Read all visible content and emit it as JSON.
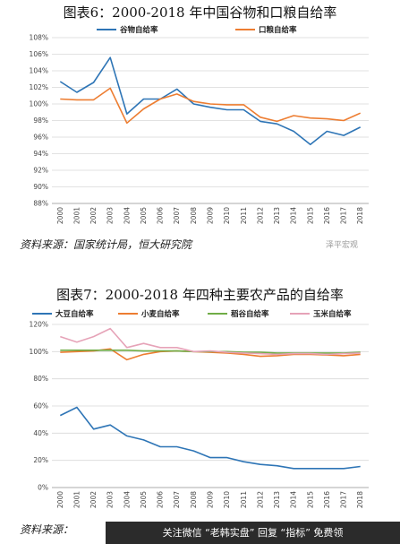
{
  "chart1": {
    "title": "图表6：2000-2018 年中国谷物和口粮自给率",
    "source": "资料来源：国家统计局，恒大研究院",
    "watermark": "泽平宏观",
    "chart_data": {
      "type": "line",
      "title": "图表6：2000-2018 年中国谷物和口粮自给率",
      "x": [
        "2000",
        "2001",
        "2002",
        "2003",
        "2004",
        "2005",
        "2006",
        "2007",
        "2008",
        "2009",
        "2010",
        "2011",
        "2012",
        "2013",
        "2014",
        "2015",
        "2016",
        "2017",
        "2018"
      ],
      "y_ticks": [
        "88%",
        "90%",
        "92%",
        "94%",
        "96%",
        "98%",
        "100%",
        "102%",
        "104%",
        "106%",
        "108%"
      ],
      "ylim": [
        88,
        108
      ],
      "grid": true,
      "legend_position": "top",
      "series": [
        {
          "name": "谷物自给率",
          "color": "#2e75b6",
          "values": [
            102.7,
            101.4,
            102.6,
            105.6,
            98.8,
            100.6,
            100.6,
            101.8,
            100.0,
            99.6,
            99.3,
            99.3,
            97.9,
            97.6,
            96.7,
            95.1,
            96.7,
            96.2,
            97.2
          ]
        },
        {
          "name": "口粮自给率",
          "color": "#ed7d31",
          "values": [
            100.6,
            100.5,
            100.5,
            101.9,
            97.7,
            99.4,
            100.6,
            101.2,
            100.3,
            100.0,
            99.9,
            99.9,
            98.4,
            97.9,
            98.6,
            98.3,
            98.2,
            98.0,
            98.9
          ]
        }
      ]
    }
  },
  "chart2": {
    "title": "图表7：2000-2018 年四种主要农产品的自给率",
    "source": "资料来源：",
    "chart_data": {
      "type": "line",
      "title": "图表7：2000-2018 年四种主要农产品的自给率",
      "x": [
        "2000",
        "2001",
        "2002",
        "2003",
        "2004",
        "2005",
        "2006",
        "2007",
        "2008",
        "2009",
        "2010",
        "2011",
        "2012",
        "2013",
        "2014",
        "2015",
        "2016",
        "2017",
        "2018"
      ],
      "y_ticks": [
        "0%",
        "20%",
        "40%",
        "60%",
        "80%",
        "100%",
        "120%"
      ],
      "ylim": [
        0,
        120
      ],
      "grid": true,
      "legend_position": "top",
      "series": [
        {
          "name": "大豆自给率",
          "color": "#2e75b6",
          "values": [
            53,
            59,
            43,
            46,
            38,
            35,
            30,
            30,
            27,
            22,
            22,
            19,
            17,
            16,
            14,
            14,
            14,
            14,
            15.5
          ]
        },
        {
          "name": "小麦自给率",
          "color": "#ed7d31",
          "values": [
            99.5,
            100,
            100.5,
            102,
            94,
            98,
            100,
            100.5,
            100,
            99.5,
            99,
            98,
            96.5,
            97,
            98,
            98,
            97.5,
            97,
            98
          ]
        },
        {
          "name": "稻谷自给率",
          "color": "#70ad47",
          "values": [
            101,
            101,
            101,
            101,
            101,
            100.5,
            100.5,
            100.5,
            100,
            100,
            100,
            99.5,
            99.5,
            99,
            99,
            99,
            99,
            99,
            99.5
          ]
        },
        {
          "name": "玉米自给率",
          "color": "#e6a3b8",
          "values": [
            111,
            107,
            111,
            117,
            103,
            106,
            103,
            103,
            100,
            100.5,
            99.5,
            99,
            98.5,
            98,
            98.5,
            98.5,
            98,
            98.5,
            99
          ]
        }
      ]
    }
  },
  "banner": {
    "text": "关注微信 “老韩实盘” 回复 “指标” 免费领"
  }
}
